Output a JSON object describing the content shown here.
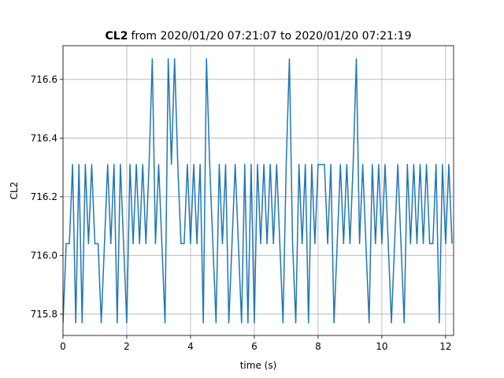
{
  "chart_data": {
    "type": "line",
    "title": [
      "CL2",
      "from 2020/01/20 07:21:07 to 2020/01/20 07:21:19"
    ],
    "xlabel": "time (s)",
    "ylabel": "CL2",
    "xlim": [
      0,
      12.25
    ],
    "ylim": [
      715.727,
      716.715
    ],
    "xticks": [
      0,
      2,
      4,
      6,
      8,
      10,
      12
    ],
    "yticks": [
      715.8,
      {
        "value": 716,
        "label": "716.0"
      },
      716.2,
      716.4,
      716.6
    ],
    "grid": true,
    "x": [
      0,
      0.1,
      0.2,
      0.3,
      0.4,
      0.5,
      0.6,
      0.7,
      0.8,
      0.9,
      1,
      1.1,
      1.2,
      1.3,
      1.4,
      1.5,
      1.6,
      1.7,
      1.8,
      1.9,
      2,
      2.1,
      2.2,
      2.3,
      2.4,
      2.5,
      2.6,
      2.7,
      2.8,
      2.9,
      3,
      3.1,
      3.2,
      3.3,
      3.4,
      3.5,
      3.6,
      3.7,
      3.8,
      3.9,
      4,
      4.1,
      4.2,
      4.3,
      4.4,
      4.5,
      4.6,
      4.7,
      4.8,
      4.9,
      5,
      5.1,
      5.2,
      5.3,
      5.4,
      5.5,
      5.6,
      5.7,
      5.8,
      5.9,
      6,
      6.1,
      6.2,
      6.3,
      6.4,
      6.5,
      6.6,
      6.7,
      6.8,
      6.9,
      7,
      7.1,
      7.2,
      7.3,
      7.4,
      7.5,
      7.6,
      7.7,
      7.8,
      7.9,
      8,
      8.1,
      8.2,
      8.3,
      8.4,
      8.5,
      8.6,
      8.7,
      8.8,
      8.9,
      9,
      9.1,
      9.2,
      9.3,
      9.4,
      9.5,
      9.6,
      9.7,
      9.8,
      9.9,
      10,
      10.1,
      10.2,
      10.3,
      10.4,
      10.5,
      10.6,
      10.7,
      10.8,
      10.9,
      11,
      11.1,
      11.2,
      11.3,
      11.4,
      11.5,
      11.6,
      11.7,
      11.8,
      11.9,
      12,
      12.1,
      12.2
    ],
    "series": [
      {
        "name": "CL2",
        "color": "#1f77b4",
        "values": [
          715.77,
          716.04,
          716.04,
          716.31,
          715.77,
          716.31,
          715.77,
          716.31,
          716.04,
          716.31,
          716.04,
          716.04,
          715.77,
          716.04,
          716.31,
          716.04,
          716.31,
          715.77,
          716.31,
          716.04,
          715.77,
          716.31,
          716.04,
          716.31,
          716.04,
          716.31,
          716.04,
          716.31,
          716.67,
          716.04,
          716.31,
          716.04,
          715.77,
          716.67,
          716.31,
          716.67,
          716.31,
          716.04,
          716.04,
          716.31,
          716.04,
          716.31,
          716.04,
          716.31,
          715.77,
          716.67,
          716.31,
          716.04,
          715.77,
          716.31,
          716.04,
          716.31,
          715.77,
          716.04,
          716.31,
          716.04,
          715.77,
          716.31,
          715.77,
          716.31,
          715.77,
          716.31,
          716.04,
          716.31,
          716.04,
          716.31,
          716.04,
          716.31,
          716.04,
          715.77,
          716.31,
          716.67,
          716.04,
          715.77,
          716.31,
          716.04,
          716.31,
          715.77,
          716.31,
          716.04,
          716.31,
          716.31,
          716.31,
          716.04,
          716.31,
          715.77,
          716.04,
          716.31,
          716.04,
          716.31,
          716.04,
          716.31,
          716.67,
          716.04,
          716.31,
          716.04,
          715.77,
          716.31,
          716.04,
          716.31,
          716.04,
          716.31,
          716.04,
          715.77,
          716.04,
          716.31,
          716.04,
          715.77,
          716.31,
          716.04,
          716.31,
          716.04,
          716.31,
          716.04,
          716.31,
          716.04,
          716.04,
          716.31,
          715.77,
          716.31,
          716.04,
          716.31,
          716.04
        ]
      }
    ]
  }
}
